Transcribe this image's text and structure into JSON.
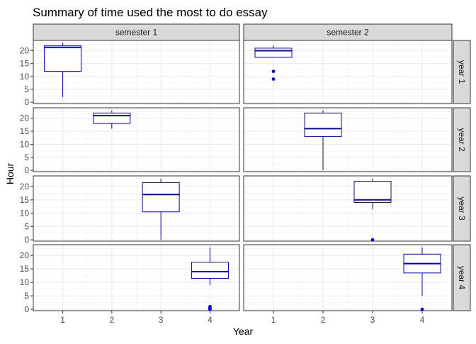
{
  "chart_data": {
    "type": "boxplot",
    "title": "Summary of time used the most to do essay",
    "xlabel": "Year",
    "ylabel": "Hour",
    "x_categories": [
      "1",
      "2",
      "3",
      "4"
    ],
    "y_ticks": [
      0,
      5,
      10,
      15,
      20
    ],
    "ylim": [
      -0.5,
      24
    ],
    "facet_columns": [
      "semester 1",
      "semester 2"
    ],
    "facet_rows": [
      "year 1",
      "year 2",
      "year 3",
      "year 4"
    ],
    "grid": true,
    "box_color": "#0000CD",
    "outlier_color": "#0000FF",
    "boxes": [
      {
        "row": 0,
        "col": 0,
        "x": "1",
        "low": 2,
        "q1": 12,
        "median": 21.3,
        "q3": 22,
        "high": 23,
        "outliers": []
      },
      {
        "row": 0,
        "col": 1,
        "x": "1",
        "low": 17.5,
        "q1": 17.5,
        "median": 20,
        "q3": 21,
        "high": 22,
        "outliers": [
          12,
          9
        ]
      },
      {
        "row": 1,
        "col": 0,
        "x": "2",
        "low": 16,
        "q1": 18,
        "median": 21,
        "q3": 22,
        "high": 23,
        "outliers": []
      },
      {
        "row": 1,
        "col": 1,
        "x": "2",
        "low": 0,
        "q1": 13,
        "median": 16,
        "q3": 22,
        "high": 23,
        "outliers": []
      },
      {
        "row": 2,
        "col": 0,
        "x": "3",
        "low": 0,
        "q1": 10.5,
        "median": 17,
        "q3": 21.5,
        "high": 23,
        "outliers": []
      },
      {
        "row": 2,
        "col": 1,
        "x": "3",
        "low": 11.5,
        "q1": 14,
        "median": 15,
        "q3": 22,
        "high": 23,
        "outliers": [
          0
        ]
      },
      {
        "row": 3,
        "col": 0,
        "x": "4",
        "low": 9,
        "q1": 11.5,
        "median": 14,
        "q3": 17.5,
        "high": 23,
        "outliers": [
          1,
          0.5,
          0
        ]
      },
      {
        "row": 3,
        "col": 1,
        "x": "4",
        "low": 5,
        "q1": 13.5,
        "median": 17,
        "q3": 20.5,
        "high": 23,
        "outliers": [
          0
        ]
      }
    ]
  }
}
